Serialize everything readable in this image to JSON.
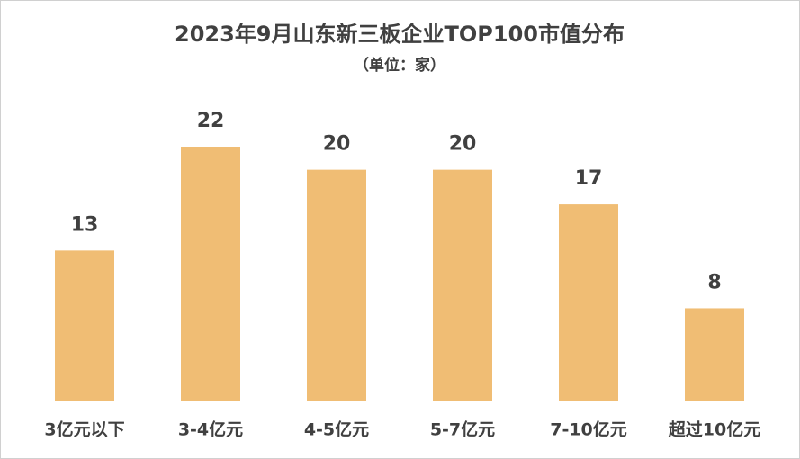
{
  "chart_data": {
    "type": "bar",
    "title": "2023年9月山东新三板企业TOP100市值分布",
    "subtitle": "（单位：家）",
    "categories": [
      "3亿元以下",
      "3-4亿元",
      "4-5亿元",
      "5-7亿元",
      "7-10亿元",
      "超过10亿元"
    ],
    "values": [
      13,
      22,
      20,
      20,
      17,
      8
    ],
    "color": "#f0bd74"
  }
}
